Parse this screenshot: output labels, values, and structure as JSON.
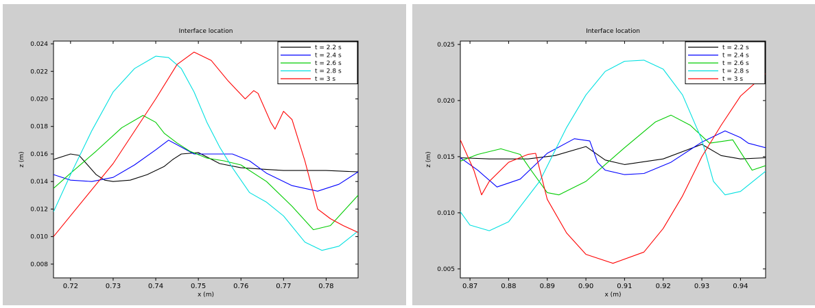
{
  "chart_data": [
    {
      "type": "line",
      "title": "Interface location",
      "xlabel": "x (m)",
      "ylabel": "z (m)",
      "xlim": [
        0.716,
        0.7875
      ],
      "ylim": [
        0.007,
        0.0242
      ],
      "xticks": [
        0.72,
        0.73,
        0.74,
        0.75,
        0.76,
        0.77,
        0.78
      ],
      "yticks": [
        0.008,
        0.01,
        0.012,
        0.014,
        0.016,
        0.018,
        0.02,
        0.022,
        0.024
      ],
      "xtick_labels": [
        "0.72",
        "0.73",
        "0.74",
        "0.75",
        "0.76",
        "0.77",
        "0.78"
      ],
      "ytick_labels": [
        "0.008",
        "0.010",
        "0.012",
        "0.014",
        "0.016",
        "0.018",
        "0.020",
        "0.022",
        "0.024"
      ],
      "legend_position": "top-right",
      "series": [
        {
          "name": "t = 2.2 s",
          "color": "#000000",
          "x": [
            0.716,
            0.72,
            0.722,
            0.724,
            0.726,
            0.728,
            0.73,
            0.734,
            0.738,
            0.742,
            0.744,
            0.746,
            0.75,
            0.755,
            0.76,
            0.77,
            0.78,
            0.7875
          ],
          "y": [
            0.0156,
            0.016,
            0.0159,
            0.0152,
            0.0145,
            0.0141,
            0.014,
            0.0141,
            0.0145,
            0.0151,
            0.0156,
            0.016,
            0.0161,
            0.0153,
            0.015,
            0.0148,
            0.0148,
            0.0147
          ]
        },
        {
          "name": "t = 2.4 s",
          "color": "#0000ff",
          "x": [
            0.716,
            0.72,
            0.725,
            0.73,
            0.735,
            0.74,
            0.743,
            0.746,
            0.749,
            0.752,
            0.758,
            0.762,
            0.766,
            0.772,
            0.778,
            0.783,
            0.7875
          ],
          "y": [
            0.0145,
            0.0141,
            0.014,
            0.0143,
            0.0152,
            0.0163,
            0.017,
            0.0165,
            0.016,
            0.016,
            0.016,
            0.0155,
            0.0146,
            0.0137,
            0.0133,
            0.0138,
            0.0147
          ]
        },
        {
          "name": "t = 2.6 s",
          "color": "#00cc00",
          "x": [
            0.716,
            0.72,
            0.726,
            0.732,
            0.737,
            0.74,
            0.742,
            0.745,
            0.748,
            0.752,
            0.756,
            0.76,
            0.766,
            0.772,
            0.777,
            0.781,
            0.7875
          ],
          "y": [
            0.0135,
            0.0146,
            0.0162,
            0.0179,
            0.0188,
            0.0183,
            0.0175,
            0.0168,
            0.0162,
            0.0157,
            0.0155,
            0.0152,
            0.014,
            0.0122,
            0.0105,
            0.0108,
            0.013
          ]
        },
        {
          "name": "t = 2.8 s",
          "color": "#00e0e0",
          "x": [
            0.716,
            0.72,
            0.725,
            0.73,
            0.735,
            0.74,
            0.743,
            0.746,
            0.749,
            0.752,
            0.755,
            0.758,
            0.762,
            0.766,
            0.77,
            0.775,
            0.779,
            0.783,
            0.7875
          ],
          "y": [
            0.0118,
            0.0145,
            0.0177,
            0.0205,
            0.0222,
            0.0231,
            0.023,
            0.0222,
            0.0205,
            0.0183,
            0.0165,
            0.015,
            0.0132,
            0.0125,
            0.0115,
            0.0096,
            0.009,
            0.0093,
            0.0104
          ]
        },
        {
          "name": "t = 3 s",
          "color": "#ff0000",
          "x": [
            0.716,
            0.73,
            0.74,
            0.745,
            0.749,
            0.753,
            0.757,
            0.761,
            0.763,
            0.764,
            0.767,
            0.768,
            0.77,
            0.772,
            0.775,
            0.778,
            0.781,
            0.784,
            0.7875
          ],
          "y": [
            0.01,
            0.0153,
            0.02,
            0.0225,
            0.0234,
            0.0228,
            0.0213,
            0.02,
            0.0206,
            0.0204,
            0.0183,
            0.0178,
            0.0191,
            0.0185,
            0.0155,
            0.012,
            0.0113,
            0.0108,
            0.0103
          ]
        }
      ]
    },
    {
      "type": "line",
      "title": "Interface location",
      "xlabel": "x (m)",
      "ylabel": "z (m)",
      "xlim": [
        0.8675,
        0.9465
      ],
      "ylim": [
        0.0042,
        0.0253
      ],
      "xticks": [
        0.87,
        0.88,
        0.89,
        0.9,
        0.91,
        0.92,
        0.93,
        0.94
      ],
      "yticks": [
        0.005,
        0.01,
        0.015,
        0.02,
        0.025
      ],
      "xtick_labels": [
        "0.87",
        "0.88",
        "0.89",
        "0.90",
        "0.91",
        "0.92",
        "0.93",
        "0.94"
      ],
      "ytick_labels": [
        "0.005",
        "0.010",
        "0.015",
        "0.020",
        "0.025"
      ],
      "legend_position": "top-right",
      "series": [
        {
          "name": "t = 2.2 s",
          "color": "#000000",
          "x": [
            0.8675,
            0.875,
            0.885,
            0.892,
            0.9,
            0.905,
            0.91,
            0.92,
            0.93,
            0.935,
            0.94,
            0.9465
          ],
          "y": [
            0.0149,
            0.0148,
            0.0148,
            0.0151,
            0.0159,
            0.0147,
            0.0143,
            0.0148,
            0.0161,
            0.0151,
            0.0148,
            0.0149
          ]
        },
        {
          "name": "t = 2.4 s",
          "color": "#0000ff",
          "x": [
            0.8675,
            0.872,
            0.877,
            0.883,
            0.89,
            0.897,
            0.901,
            0.903,
            0.905,
            0.91,
            0.915,
            0.922,
            0.93,
            0.936,
            0.94,
            0.942,
            0.9465
          ],
          "y": [
            0.0149,
            0.0138,
            0.0123,
            0.013,
            0.0153,
            0.0166,
            0.0164,
            0.0145,
            0.0138,
            0.0134,
            0.0135,
            0.0145,
            0.0163,
            0.0173,
            0.0167,
            0.0162,
            0.0158
          ]
        },
        {
          "name": "t = 2.6 s",
          "color": "#00cc00",
          "x": [
            0.8675,
            0.872,
            0.878,
            0.883,
            0.886,
            0.89,
            0.893,
            0.9,
            0.91,
            0.918,
            0.922,
            0.927,
            0.932,
            0.938,
            0.943,
            0.9465
          ],
          "y": [
            0.0146,
            0.0152,
            0.0157,
            0.0152,
            0.0137,
            0.0118,
            0.0116,
            0.0128,
            0.0158,
            0.0181,
            0.0187,
            0.0178,
            0.0162,
            0.0165,
            0.0138,
            0.0142
          ]
        },
        {
          "name": "t = 2.8 s",
          "color": "#00e0e0",
          "x": [
            0.8675,
            0.87,
            0.875,
            0.88,
            0.888,
            0.895,
            0.9,
            0.905,
            0.91,
            0.915,
            0.92,
            0.925,
            0.93,
            0.933,
            0.936,
            0.94,
            0.9465
          ],
          "y": [
            0.0101,
            0.0089,
            0.0084,
            0.0092,
            0.0128,
            0.0176,
            0.0205,
            0.0226,
            0.0235,
            0.0236,
            0.0228,
            0.0205,
            0.0165,
            0.0128,
            0.0116,
            0.0119,
            0.0137
          ]
        },
        {
          "name": "t = 3 s",
          "color": "#ff0000",
          "x": [
            0.8675,
            0.871,
            0.873,
            0.875,
            0.88,
            0.885,
            0.887,
            0.89,
            0.895,
            0.9,
            0.907,
            0.915,
            0.92,
            0.925,
            0.93,
            0.935,
            0.94,
            0.9465
          ],
          "y": [
            0.0165,
            0.0138,
            0.0116,
            0.0128,
            0.0145,
            0.0152,
            0.0153,
            0.0112,
            0.0082,
            0.0063,
            0.0055,
            0.0065,
            0.0086,
            0.0115,
            0.015,
            0.0178,
            0.0204,
            0.0224
          ]
        }
      ]
    }
  ]
}
